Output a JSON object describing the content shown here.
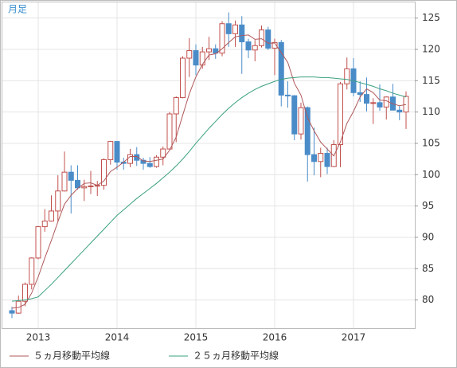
{
  "chart_data": {
    "type": "candlestick",
    "title": "月足",
    "categories": [
      null,
      null,
      null,
      null,
      "2013",
      null,
      null,
      null,
      null,
      null,
      null,
      null,
      null,
      null,
      null,
      null,
      "2014",
      null,
      null,
      null,
      null,
      null,
      null,
      null,
      null,
      null,
      null,
      null,
      "2015",
      null,
      null,
      null,
      null,
      null,
      null,
      null,
      null,
      null,
      null,
      null,
      "2016",
      null,
      null,
      null,
      null,
      null,
      null,
      null,
      null,
      null,
      null,
      null,
      "2017",
      null,
      null,
      null,
      null,
      null,
      null,
      null,
      null
    ],
    "open": [
      78.3,
      77.9,
      79.8,
      82.5,
      86.7,
      91.7,
      92.6,
      94.2,
      97.4,
      100.4,
      99.1,
      97.9,
      98.1,
      98.2,
      98.3,
      102.4,
      105.3,
      102.0,
      101.8,
      103.2,
      102.3,
      101.8,
      101.3,
      102.8,
      104.1,
      109.7,
      112.3,
      118.6,
      119.8,
      117.5,
      119.6,
      120.1,
      119.4,
      124.1,
      122.5,
      123.9,
      121.2,
      119.9,
      120.6,
      123.1,
      120.2,
      121.1,
      112.7,
      112.6,
      106.5,
      110.7,
      103.2,
      102.1,
      103.4,
      101.3,
      104.8,
      114.5,
      116.9,
      113.1,
      112.8,
      111.4,
      111.5,
      110.8,
      112.4,
      110.3,
      110.0
    ],
    "high": [
      78.9,
      80.7,
      82.8,
      86.8,
      91.8,
      94.5,
      96.7,
      99.9,
      103.7,
      101.5,
      101.5,
      99.2,
      100.6,
      99.0,
      102.6,
      105.4,
      105.4,
      102.7,
      104.1,
      104.4,
      102.7,
      102.8,
      103.1,
      104.5,
      110.0,
      112.5,
      118.9,
      121.8,
      120.8,
      120.4,
      122.0,
      120.8,
      124.5,
      125.9,
      124.6,
      125.3,
      121.7,
      121.5,
      123.8,
      123.6,
      121.7,
      121.5,
      114.9,
      112.7,
      111.5,
      110.9,
      107.5,
      104.3,
      104.3,
      105.5,
      114.8,
      118.7,
      118.6,
      114.9,
      115.5,
      112.2,
      114.4,
      112.5,
      114.5,
      111.0,
      113.3
    ],
    "low": [
      77.1,
      77.8,
      79.0,
      81.7,
      86.5,
      90.9,
      92.5,
      92.6,
      97.3,
      93.8,
      97.6,
      95.8,
      96.9,
      96.6,
      97.6,
      101.6,
      100.8,
      100.8,
      101.2,
      101.4,
      100.8,
      101.1,
      101.1,
      101.5,
      104.1,
      105.2,
      112.2,
      115.6,
      115.9,
      116.9,
      118.3,
      118.5,
      118.9,
      120.4,
      120.4,
      116.1,
      118.6,
      118.1,
      120.3,
      119.9,
      115.9,
      110.9,
      110.7,
      105.5,
      105.6,
      98.9,
      99.9,
      99.6,
      100.1,
      101.2,
      101.2,
      113.6,
      112.5,
      111.6,
      110.1,
      108.1,
      110.2,
      108.8,
      110.6,
      108.7,
      107.3
    ],
    "close": [
      77.9,
      79.8,
      82.5,
      86.7,
      91.7,
      92.6,
      94.2,
      97.4,
      100.4,
      99.1,
      97.9,
      98.1,
      98.2,
      98.3,
      102.4,
      105.3,
      102.0,
      101.8,
      103.2,
      102.3,
      101.8,
      101.3,
      102.8,
      104.1,
      109.7,
      112.3,
      118.6,
      119.8,
      117.5,
      119.6,
      120.1,
      119.4,
      124.1,
      122.5,
      123.9,
      121.2,
      119.9,
      120.6,
      123.1,
      120.2,
      121.1,
      112.7,
      112.6,
      106.5,
      110.7,
      103.2,
      102.1,
      103.4,
      101.3,
      104.8,
      114.5,
      116.9,
      113.1,
      112.8,
      111.4,
      111.5,
      110.8,
      112.4,
      110.3,
      110.0,
      112.5
    ],
    "up_color": "#c0504d",
    "down_color": "#4a8cc8",
    "series": [
      {
        "name": "５ヵ月移動平均線",
        "color": "#b0585a",
        "values": [
          78.7,
          78.8,
          79.3,
          81.1,
          83.7,
          86.7,
          89.5,
          92.5,
          95.3,
          96.7,
          97.8,
          98.6,
          98.7,
          98.3,
          99.0,
          100.5,
          101.2,
          102.0,
          102.9,
          102.9,
          102.2,
          102.1,
          102.3,
          102.5,
          103.9,
          106.0,
          109.5,
          112.9,
          115.6,
          117.6,
          119.1,
          119.3,
          120.1,
          121.1,
          122.0,
          122.2,
          122.3,
          121.6,
          121.7,
          121.0,
          121.0,
          119.5,
          117.9,
          114.6,
          112.7,
          109.1,
          107.0,
          105.2,
          104.1,
          103.0,
          105.2,
          108.2,
          110.1,
          112.4,
          113.7,
          113.1,
          111.9,
          111.8,
          111.3,
          111.0,
          111.2
        ]
      },
      {
        "name": "２５ヵ月移動平均線",
        "color": "#3aa080",
        "values": [
          79.8,
          79.9,
          80.0,
          80.2,
          80.5,
          81.5,
          82.5,
          83.6,
          84.7,
          85.8,
          86.9,
          88.0,
          89.1,
          90.2,
          91.3,
          92.4,
          93.5,
          94.4,
          95.3,
          96.2,
          97.0,
          97.8,
          98.6,
          99.5,
          100.4,
          101.4,
          102.5,
          103.7,
          105.0,
          106.2,
          107.4,
          108.5,
          109.6,
          110.6,
          111.5,
          112.3,
          113.0,
          113.6,
          114.1,
          114.5,
          114.9,
          115.2,
          115.4,
          115.5,
          115.6,
          115.6,
          115.6,
          115.5,
          115.5,
          115.4,
          115.3,
          115.2,
          115.0,
          114.7,
          114.4,
          114.1,
          113.7,
          113.4,
          113.0,
          112.7,
          112.4
        ]
      }
    ],
    "ylim": [
      75.5,
      127.5
    ],
    "yticks": [
      80,
      85,
      90,
      95,
      100,
      105,
      110,
      115,
      120,
      125
    ],
    "grid": true
  }
}
